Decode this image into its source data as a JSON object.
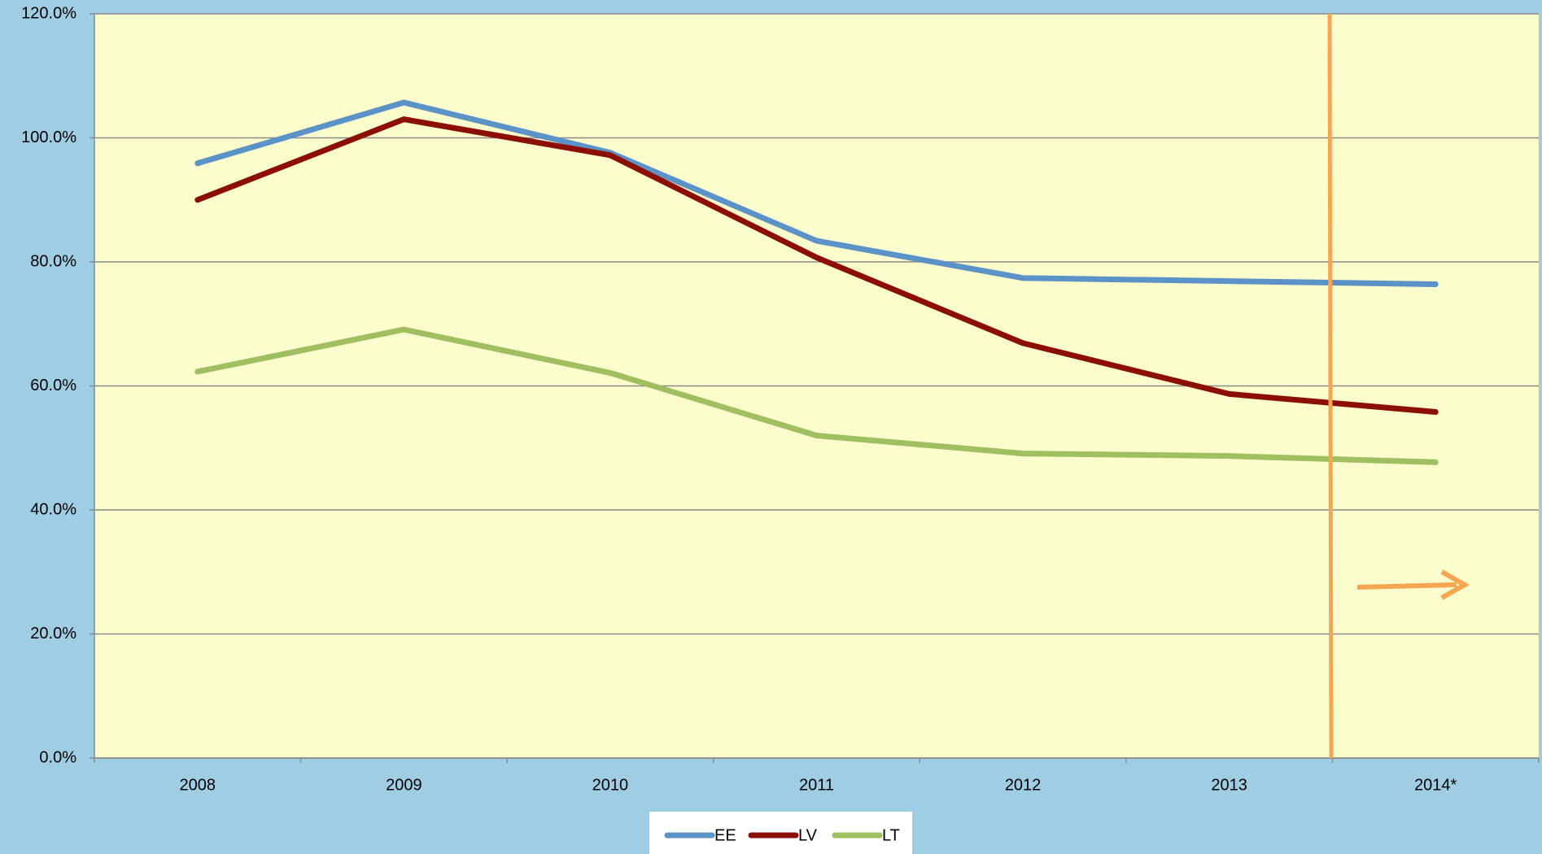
{
  "chart_data": {
    "type": "line",
    "categories": [
      "2008",
      "2009",
      "2010",
      "2011",
      "2012",
      "2013",
      "2014*"
    ],
    "series": [
      {
        "name": "EE",
        "color": "#5b93c9",
        "values": [
          95.9,
          105.7,
          97.6,
          83.4,
          77.4,
          76.9,
          76.4
        ]
      },
      {
        "name": "LV",
        "color": "#8b0f04",
        "values": [
          90.0,
          103.0,
          97.2,
          80.7,
          66.9,
          58.7,
          55.8
        ]
      },
      {
        "name": "LT",
        "color": "#9fbf60",
        "values": [
          62.3,
          69.1,
          62.1,
          52.0,
          49.1,
          48.7,
          47.7
        ]
      }
    ],
    "ylim": [
      0,
      120
    ],
    "yticks": [
      {
        "value": 0,
        "label": "0.0%"
      },
      {
        "value": 20,
        "label": "20.0%"
      },
      {
        "value": 40,
        "label": "40.0%"
      },
      {
        "value": 60,
        "label": "60.0%"
      },
      {
        "value": 80,
        "label": "80.0%"
      },
      {
        "value": 100,
        "label": "100.0%"
      },
      {
        "value": 120,
        "label": "120.0%"
      }
    ],
    "grid": true,
    "legend": "bottom"
  }
}
